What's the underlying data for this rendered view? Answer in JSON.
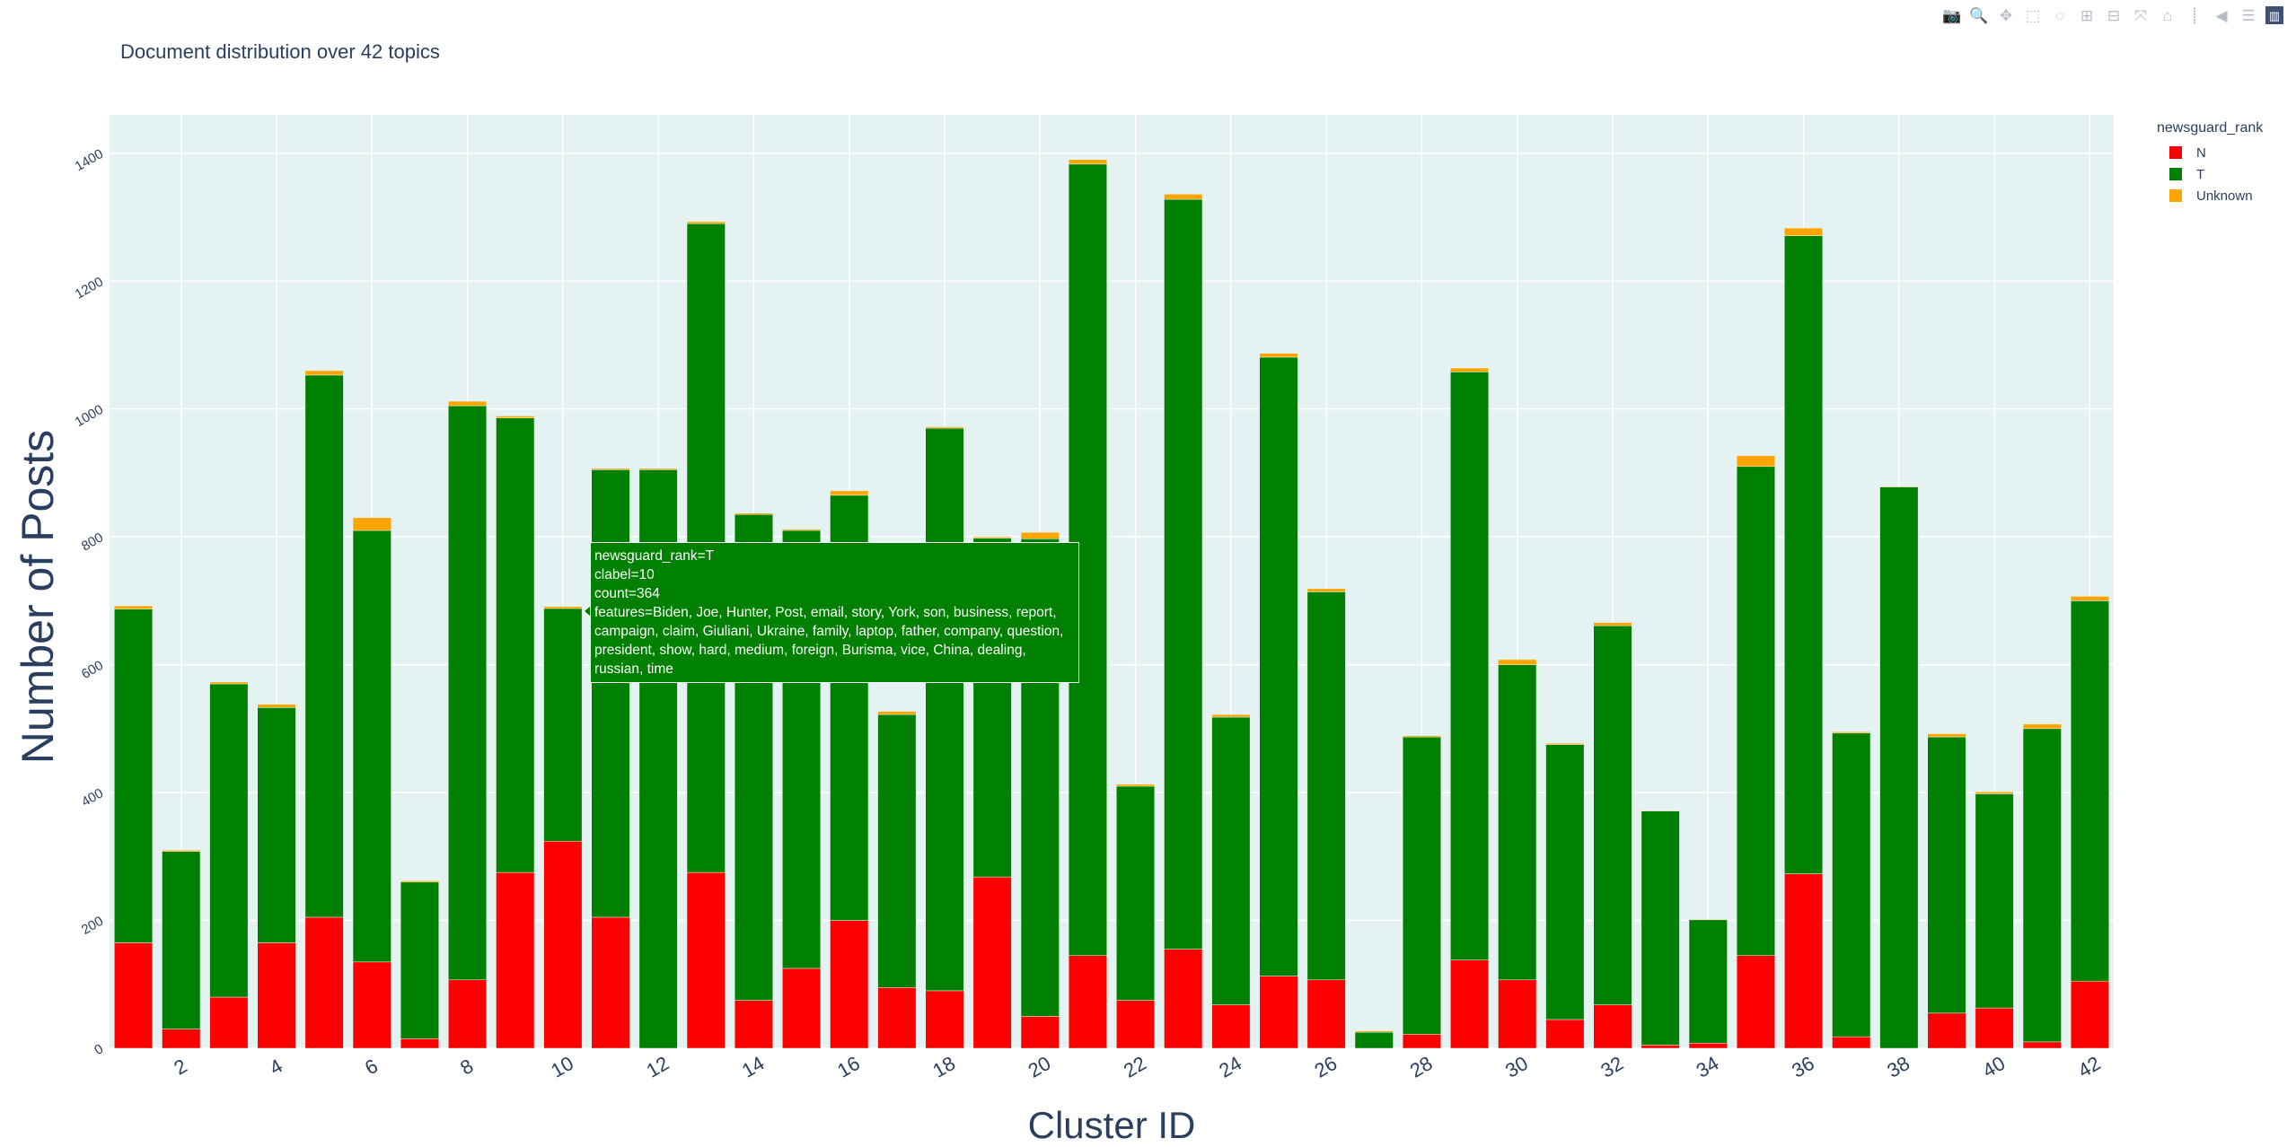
{
  "modebar": {
    "buttons": [
      {
        "name": "camera-icon",
        "glyph": "📷"
      },
      {
        "name": "zoom-icon",
        "glyph": "🔍",
        "active": true
      },
      {
        "name": "pan-icon",
        "glyph": "✥"
      },
      {
        "name": "box-select-icon",
        "glyph": "⬚"
      },
      {
        "name": "lasso-select-icon",
        "glyph": "◌"
      },
      {
        "name": "zoom-in-icon",
        "glyph": "⊞"
      },
      {
        "name": "zoom-out-icon",
        "glyph": "⊟"
      },
      {
        "name": "autoscale-icon",
        "glyph": "⤧"
      },
      {
        "name": "reset-axes-icon",
        "glyph": "⌂"
      },
      {
        "name": "spike-lines-icon",
        "glyph": "⸽"
      },
      {
        "name": "hover-closest-icon",
        "glyph": "◀"
      },
      {
        "name": "hover-compare-icon",
        "glyph": "☰"
      },
      {
        "name": "plotly-logo-icon",
        "glyph": "▥"
      }
    ]
  },
  "chart_data": {
    "type": "bar",
    "barmode": "stack",
    "title": "Document distribution over 42 topics",
    "xlabel": "Cluster ID",
    "ylabel": "Number of Posts",
    "categories": [
      1,
      2,
      3,
      4,
      5,
      6,
      7,
      8,
      9,
      10,
      11,
      12,
      13,
      14,
      15,
      16,
      17,
      18,
      19,
      20,
      21,
      22,
      23,
      24,
      25,
      26,
      27,
      28,
      29,
      30,
      31,
      32,
      33,
      34,
      35,
      36,
      37,
      38,
      39,
      40,
      41,
      42
    ],
    "x_ticks": [
      2,
      4,
      6,
      8,
      10,
      12,
      14,
      16,
      18,
      20,
      22,
      24,
      26,
      28,
      30,
      32,
      34,
      36,
      38,
      40,
      42
    ],
    "y_ticks": [
      0,
      200,
      400,
      600,
      800,
      1000,
      1200,
      1400
    ],
    "ylim": [
      0,
      1460
    ],
    "grid": true,
    "legend": {
      "title": "newsguard_rank",
      "placement": "top-right"
    },
    "series": [
      {
        "name": "N",
        "color": "#ff0000",
        "values": [
          165,
          30,
          80,
          165,
          205,
          135,
          15,
          107,
          275,
          324,
          205,
          0,
          275,
          75,
          125,
          200,
          95,
          90,
          268,
          50,
          145,
          75,
          155,
          68,
          113,
          107,
          0,
          22,
          138,
          107,
          45,
          68,
          5,
          8,
          145,
          273,
          18,
          0,
          55,
          63,
          10,
          105
        ]
      },
      {
        "name": "T",
        "color": "#008000",
        "values": [
          522,
          278,
          490,
          368,
          848,
          675,
          245,
          898,
          711,
          364,
          700,
          905,
          1015,
          760,
          685,
          665,
          427,
          880,
          530,
          747,
          1238,
          335,
          1173,
          450,
          968,
          607,
          25,
          465,
          920,
          493,
          430,
          593,
          366,
          193,
          765,
          998,
          475,
          878,
          432,
          335,
          490,
          595
        ]
      },
      {
        "name": "Unknown",
        "color": "#ffa500",
        "values": [
          5,
          2,
          3,
          5,
          7,
          20,
          2,
          7,
          3,
          3,
          2,
          2,
          3,
          2,
          2,
          7,
          5,
          2,
          2,
          10,
          7,
          3,
          8,
          4,
          6,
          5,
          2,
          2,
          6,
          8,
          2,
          5,
          1,
          1,
          17,
          12,
          2,
          1,
          5,
          3,
          7,
          7
        ]
      }
    ]
  },
  "tooltip": {
    "lines": [
      "newsguard_rank=T",
      "clabel=10",
      "count=364",
      "features=Biden, Joe, Hunter, Post, email, story, York, son, business, report, campaign, claim, Giuliani, Ukraine, family, laptop, father, company, question, president, show, hard, medium, foreign, Burisma, vice, China, dealing, russian, time"
    ]
  }
}
